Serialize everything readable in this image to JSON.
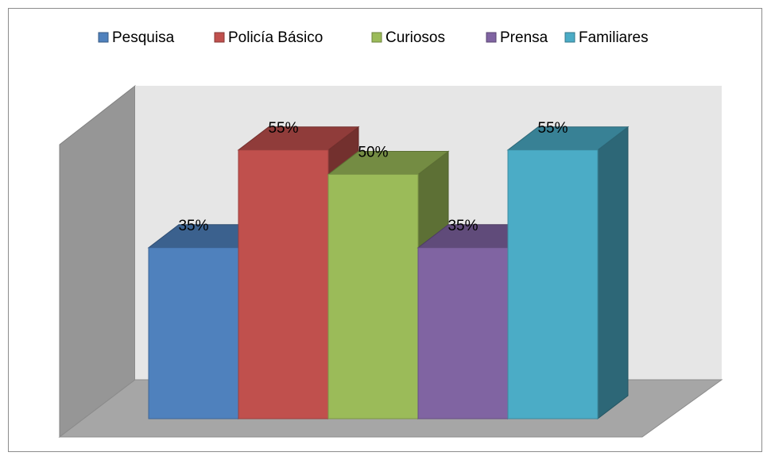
{
  "chart_data": {
    "type": "bar3d",
    "series": [
      {
        "name": "Pesquisa",
        "color": "#4f81bd",
        "values": [
          35
        ],
        "value_labels": [
          "35%"
        ]
      },
      {
        "name": "Policía Básico",
        "color": "#c0504d",
        "values": [
          55
        ],
        "value_labels": [
          "55%"
        ]
      },
      {
        "name": "Curiosos",
        "color": "#9bbb59",
        "values": [
          50
        ],
        "value_labels": [
          "50%"
        ]
      },
      {
        "name": "Prensa",
        "color": "#8064a2",
        "values": [
          35
        ],
        "value_labels": [
          "35%"
        ]
      },
      {
        "name": "Familiares",
        "color": "#4bacc6",
        "values": [
          55
        ],
        "value_labels": [
          "55%"
        ]
      }
    ]
  }
}
